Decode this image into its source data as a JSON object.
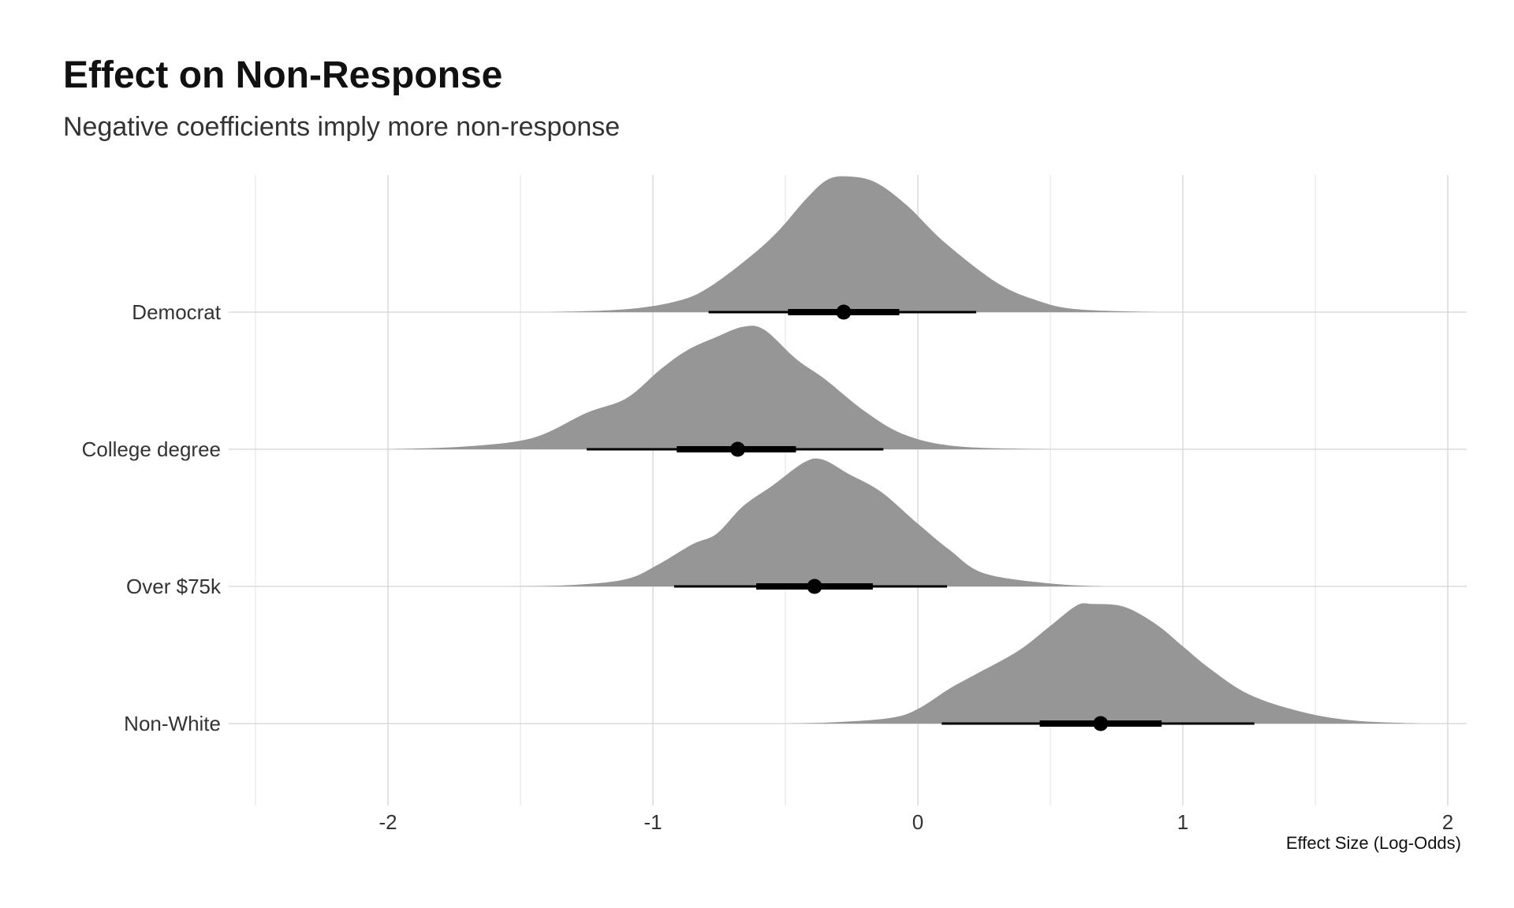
{
  "chart_data": {
    "type": "ridgeline",
    "title": "Effect on Non-Response",
    "subtitle": "Negative coefficients imply more non-response",
    "xlabel": "Effect Size (Log-Odds)",
    "ylabel": "",
    "xlim": [
      -2.5,
      2.07
    ],
    "x_ticks": [
      -2,
      -1,
      0,
      1,
      2
    ],
    "x_tick_labels": [
      "-2",
      "-1",
      "0",
      "1",
      "2"
    ],
    "grid": true,
    "density_color": "#969696",
    "point_color": "#000000",
    "categories": [
      "Democrat",
      "College degree",
      "Over $75k",
      "Non-White"
    ],
    "series": [
      {
        "name": "Democrat",
        "median": -0.28,
        "interval_66": [
          -0.49,
          -0.07
        ],
        "interval_95": [
          -0.79,
          0.22
        ],
        "density": [
          [
            -1.4,
            0
          ],
          [
            -1.1,
            0.02
          ],
          [
            -0.9,
            0.08
          ],
          [
            -0.78,
            0.18
          ],
          [
            -0.62,
            0.4
          ],
          [
            -0.52,
            0.57
          ],
          [
            -0.42,
            0.78
          ],
          [
            -0.34,
            0.91
          ],
          [
            -0.26,
            0.93
          ],
          [
            -0.16,
            0.89
          ],
          [
            -0.04,
            0.73
          ],
          [
            0.1,
            0.48
          ],
          [
            0.3,
            0.2
          ],
          [
            0.45,
            0.08
          ],
          [
            0.6,
            0.02
          ],
          [
            0.9,
            0
          ]
        ]
      },
      {
        "name": "College degree",
        "median": -0.68,
        "interval_66": [
          -0.91,
          -0.46
        ],
        "interval_95": [
          -1.25,
          -0.13
        ],
        "density": [
          [
            -2.0,
            0
          ],
          [
            -1.7,
            0.02
          ],
          [
            -1.45,
            0.08
          ],
          [
            -1.25,
            0.25
          ],
          [
            -1.1,
            0.35
          ],
          [
            -0.97,
            0.55
          ],
          [
            -0.87,
            0.68
          ],
          [
            -0.76,
            0.77
          ],
          [
            -0.66,
            0.84
          ],
          [
            -0.58,
            0.82
          ],
          [
            -0.46,
            0.62
          ],
          [
            -0.35,
            0.48
          ],
          [
            -0.2,
            0.26
          ],
          [
            -0.05,
            0.1
          ],
          [
            0.15,
            0.02
          ],
          [
            0.5,
            0
          ]
        ]
      },
      {
        "name": "Over $75k",
        "median": -0.39,
        "interval_66": [
          -0.61,
          -0.17
        ],
        "interval_95": [
          -0.92,
          0.11
        ],
        "density": [
          [
            -1.55,
            0
          ],
          [
            -1.3,
            0.01
          ],
          [
            -1.1,
            0.05
          ],
          [
            -0.98,
            0.15
          ],
          [
            -0.85,
            0.29
          ],
          [
            -0.76,
            0.36
          ],
          [
            -0.66,
            0.55
          ],
          [
            -0.55,
            0.69
          ],
          [
            -0.43,
            0.85
          ],
          [
            -0.36,
            0.87
          ],
          [
            -0.26,
            0.77
          ],
          [
            -0.14,
            0.65
          ],
          [
            0.0,
            0.43
          ],
          [
            0.12,
            0.25
          ],
          [
            0.25,
            0.09
          ],
          [
            0.5,
            0.02
          ],
          [
            0.7,
            0
          ]
        ]
      },
      {
        "name": "Non-White",
        "median": 0.69,
        "interval_66": [
          0.46,
          0.92
        ],
        "interval_95": [
          0.09,
          1.27
        ],
        "density": [
          [
            -0.5,
            0
          ],
          [
            -0.3,
            0.01
          ],
          [
            -0.1,
            0.04
          ],
          [
            0.0,
            0.1
          ],
          [
            0.12,
            0.24
          ],
          [
            0.22,
            0.34
          ],
          [
            0.38,
            0.5
          ],
          [
            0.5,
            0.67
          ],
          [
            0.6,
            0.81
          ],
          [
            0.66,
            0.82
          ],
          [
            0.78,
            0.8
          ],
          [
            0.9,
            0.68
          ],
          [
            1.0,
            0.53
          ],
          [
            1.1,
            0.38
          ],
          [
            1.25,
            0.2
          ],
          [
            1.45,
            0.08
          ],
          [
            1.65,
            0.02
          ],
          [
            1.9,
            0
          ]
        ]
      }
    ]
  }
}
